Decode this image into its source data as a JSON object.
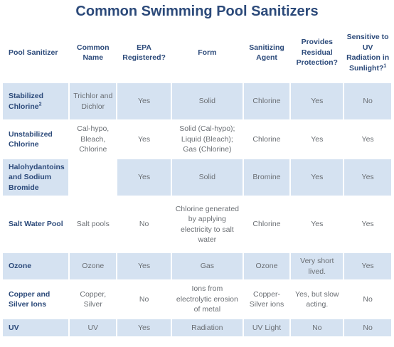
{
  "title": "Common Swimming Pool Sanitizers",
  "headers": {
    "pool_sanitizer": "Pool Sanitizer",
    "common_name": "Common Name",
    "epa_registered": "EPA Registered?",
    "form": "Form",
    "sanitizing_agent": "Sanitizing Agent",
    "residual": "Provides Residual Protection?",
    "uv_sensitive": "Sensitive to UV Radiation in Sunlight?",
    "uv_sensitive_note": "1"
  },
  "rows": [
    {
      "name": "Stabilized Chlorine",
      "note": "2",
      "common_name": "Trichlor and Dichlor",
      "epa": "Yes",
      "form": "Solid",
      "agent": "Chlorine",
      "residual": "Yes",
      "uv": "No"
    },
    {
      "name": "Unstabilized Chlorine",
      "note": "",
      "common_name": "Cal-hypo, Bleach, Chlorine",
      "epa": "Yes",
      "form": "Solid (Cal-hypo); Liquid (Bleach); Gas (Chlorine)",
      "agent": "Chlorine",
      "residual": "Yes",
      "uv": "Yes"
    },
    {
      "name": "Halohydantoins and Sodium Bromide",
      "note": "",
      "common_name": "",
      "epa": "Yes",
      "form": "Solid",
      "agent": "Bromine",
      "residual": "Yes",
      "uv": "Yes"
    },
    {
      "name": "Salt Water Pool",
      "note": "",
      "common_name": "Salt pools",
      "epa": "No",
      "form": "Chlorine generated by applying electricity to salt water",
      "agent": "Chlorine",
      "residual": "Yes",
      "uv": "Yes"
    },
    {
      "name": "Ozone",
      "note": "",
      "common_name": "Ozone",
      "epa": "Yes",
      "form": "Gas",
      "agent": "Ozone",
      "residual": "Very short lived.",
      "uv": "Yes"
    },
    {
      "name": "Copper and Silver Ions",
      "note": "",
      "common_name": "Copper, Silver",
      "epa": "No",
      "form": "Ions from electrolytic erosion of metal",
      "agent": "Copper-Silver ions",
      "residual": "Yes, but slow acting.",
      "uv": "No"
    },
    {
      "name": "UV",
      "note": "",
      "common_name": "UV",
      "epa": "Yes",
      "form": "Radiation",
      "agent": "UV Light",
      "residual": "No",
      "uv": "No"
    }
  ]
}
